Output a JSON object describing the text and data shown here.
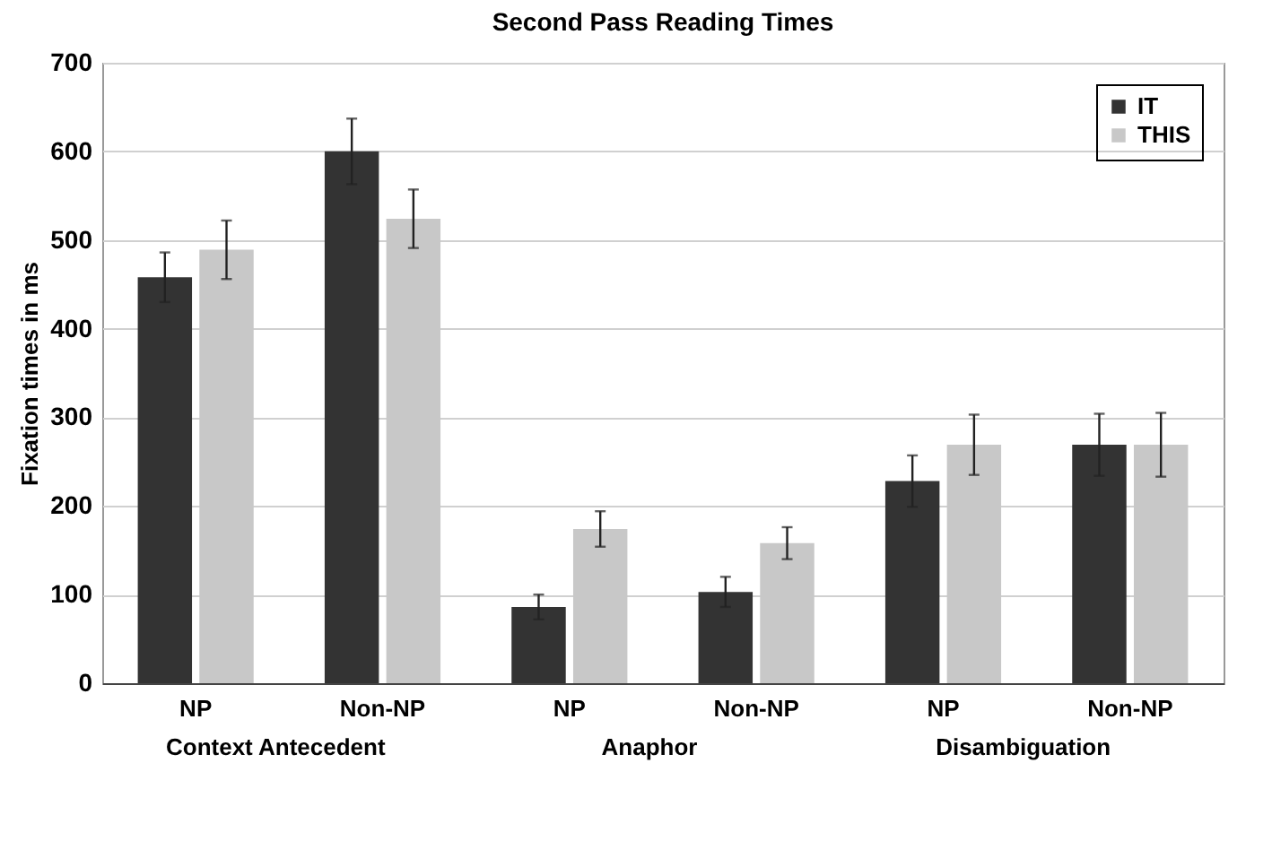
{
  "chart_data": {
    "type": "bar",
    "title": "Second Pass Reading Times",
    "ylabel": "Fixation times in ms",
    "categories": [
      "NP",
      "Non-NP",
      "NP",
      "Non-NP",
      "NP",
      "Non-NP"
    ],
    "series": [
      {
        "name": "IT",
        "color": "#333333",
        "values": [
          458,
          600,
          86,
          103,
          228,
          269
        ],
        "errors": [
          28,
          37,
          14,
          17,
          29,
          35
        ]
      },
      {
        "name": "THIS",
        "color": "#c8c8c8",
        "values": [
          489,
          524,
          174,
          158,
          269,
          269
        ],
        "errors": [
          33,
          33,
          20,
          18,
          34,
          36
        ]
      }
    ],
    "annotations": [
      "Context Antecedent",
      "Anaphor",
      "Disambiguation"
    ],
    "ylim": [
      0,
      700
    ],
    "yticks": [
      0,
      100,
      200,
      300,
      400,
      500,
      600,
      700
    ],
    "grid": "y",
    "legend": "top right"
  }
}
